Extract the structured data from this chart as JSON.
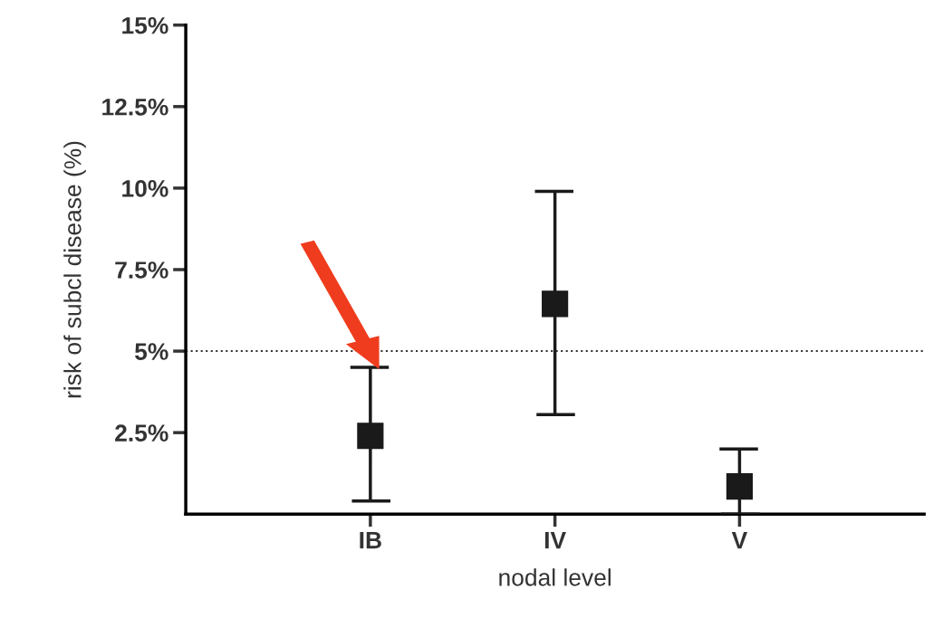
{
  "chart_data": {
    "type": "scatter",
    "xlabel": "nodal level",
    "ylabel": "risk of subcl disease (%)",
    "categories": [
      "IB",
      "IV",
      "V"
    ],
    "series": [
      {
        "color": "#1a1a1a",
        "values": [
          2.4,
          6.45,
          0.85
        ],
        "errors": [
          [
            0.4,
            4.5
          ],
          [
            3.05,
            9.9
          ],
          [
            0,
            2.0
          ]
        ]
      }
    ],
    "marker": "square",
    "grid": false,
    "ylim": [
      0,
      15
    ],
    "yticks": [
      {
        "value": 2.5,
        "label": "2.5%"
      },
      {
        "value": 5,
        "label": "5%"
      },
      {
        "value": 7.5,
        "label": "7.5%"
      },
      {
        "value": 10,
        "label": "10%"
      },
      {
        "value": 12.5,
        "label": "12.5%"
      },
      {
        "value": 15,
        "label": "15%"
      }
    ],
    "ref_lines": [
      {
        "axis": "y",
        "value": 5,
        "color": "#333333",
        "line_style": "dotted"
      }
    ]
  }
}
